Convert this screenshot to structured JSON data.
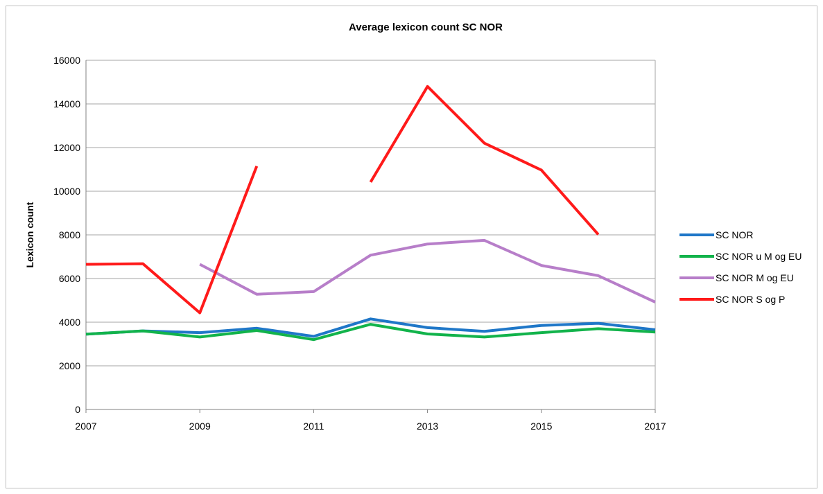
{
  "chart_data": {
    "type": "line",
    "title": "Average lexicon count SC NOR",
    "xlabel": "",
    "ylabel": "Lexicon count",
    "x": [
      2007,
      2008,
      2009,
      2010,
      2011,
      2012,
      2013,
      2014,
      2015,
      2016,
      2017
    ],
    "xlim": [
      2007,
      2017
    ],
    "xticks": [
      "2007",
      "2009",
      "2011",
      "2013",
      "2015",
      "2017"
    ],
    "ylim": [
      0,
      16000
    ],
    "yticks": [
      "0",
      "2000",
      "4000",
      "6000",
      "8000",
      "10000",
      "12000",
      "14000",
      "16000"
    ],
    "grid": true,
    "legend_position": "right",
    "series": [
      {
        "name": "SC NOR",
        "color": "#1f77c8",
        "values": [
          3450,
          3600,
          3520,
          3720,
          3350,
          4150,
          3750,
          3580,
          3850,
          3950,
          3650
        ]
      },
      {
        "name": "SC NOR u M og EU",
        "color": "#12b34b",
        "values": [
          3450,
          3600,
          3320,
          3620,
          3200,
          3900,
          3460,
          3320,
          3520,
          3700,
          3550
        ]
      },
      {
        "name": "SC NOR M og EU",
        "color": "#b77ec9",
        "values": [
          null,
          null,
          6650,
          5280,
          5400,
          7070,
          7580,
          7750,
          6600,
          6130,
          4920
        ]
      },
      {
        "name": "SC NOR S og P",
        "color": "#ff1a1a",
        "values": [
          6650,
          6680,
          4430,
          11150,
          null,
          10420,
          14800,
          12200,
          10970,
          8020,
          null
        ]
      }
    ]
  }
}
